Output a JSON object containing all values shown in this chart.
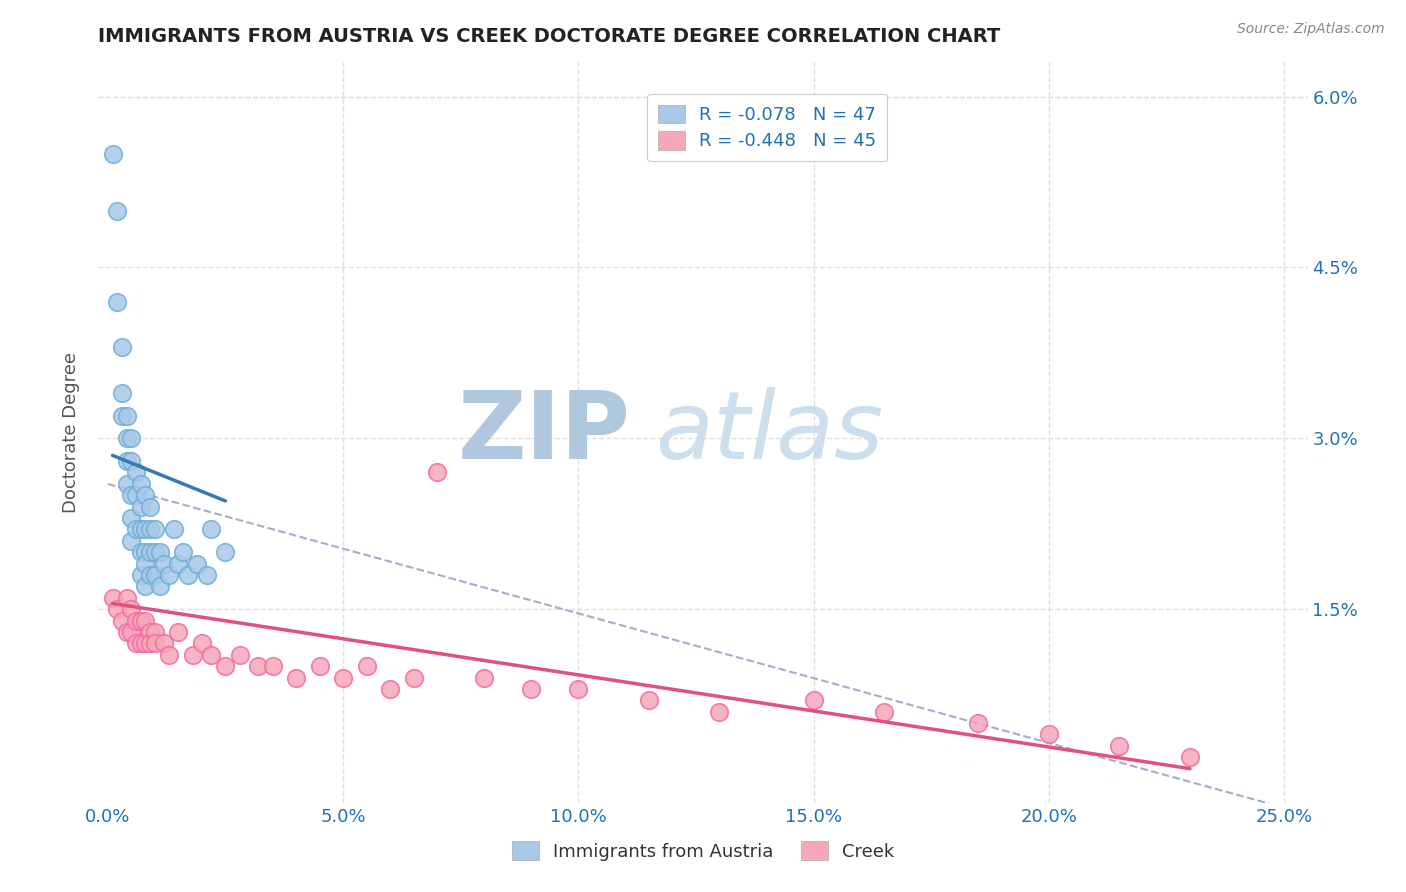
{
  "title": "IMMIGRANTS FROM AUSTRIA VS CREEK DOCTORATE DEGREE CORRELATION CHART",
  "source_text": "Source: ZipAtlas.com",
  "ylabel": "Doctorate Degree",
  "xlim": [
    -0.002,
    0.255
  ],
  "ylim": [
    -0.002,
    0.063
  ],
  "xticks": [
    0.0,
    0.05,
    0.1,
    0.15,
    0.2,
    0.25
  ],
  "xticklabels": [
    "0.0%",
    "5.0%",
    "10.0%",
    "15.0%",
    "20.0%",
    "25.0%"
  ],
  "yticks": [
    0.0,
    0.015,
    0.03,
    0.045,
    0.06
  ],
  "yticklabels_left": [
    "",
    "",
    "",
    "",
    ""
  ],
  "yticklabels_right": [
    "",
    "1.5%",
    "3.0%",
    "4.5%",
    "6.0%"
  ],
  "legend_label1": "Immigrants from Austria",
  "legend_label2": "Creek",
  "r1": -0.078,
  "n1": 47,
  "r2": -0.448,
  "n2": 45,
  "blue_color": "#a8c8e8",
  "pink_color": "#f4a8b8",
  "blue_edge_color": "#6baed6",
  "pink_edge_color": "#f768a1",
  "blue_line_color": "#3878b4",
  "pink_line_color": "#e05080",
  "dashed_line_color": "#aaaacc",
  "grid_color": "#e0e0e0",
  "title_color": "#222222",
  "axis_label_color": "#555555",
  "tick_color": "#2171b5",
  "watermark_zip_color": "#c8d8e8",
  "watermark_atlas_color": "#b8cce0",
  "background_color": "#ffffff",
  "austria_x": [
    0.001,
    0.002,
    0.002,
    0.003,
    0.003,
    0.003,
    0.004,
    0.004,
    0.004,
    0.004,
    0.005,
    0.005,
    0.005,
    0.005,
    0.005,
    0.006,
    0.006,
    0.006,
    0.007,
    0.007,
    0.007,
    0.007,
    0.007,
    0.008,
    0.008,
    0.008,
    0.008,
    0.008,
    0.009,
    0.009,
    0.009,
    0.009,
    0.01,
    0.01,
    0.01,
    0.011,
    0.011,
    0.012,
    0.013,
    0.014,
    0.015,
    0.016,
    0.017,
    0.019,
    0.021,
    0.022,
    0.025
  ],
  "austria_y": [
    0.055,
    0.05,
    0.042,
    0.038,
    0.034,
    0.032,
    0.032,
    0.03,
    0.028,
    0.026,
    0.03,
    0.028,
    0.025,
    0.023,
    0.021,
    0.027,
    0.025,
    0.022,
    0.026,
    0.024,
    0.022,
    0.02,
    0.018,
    0.025,
    0.022,
    0.02,
    0.019,
    0.017,
    0.024,
    0.022,
    0.02,
    0.018,
    0.022,
    0.02,
    0.018,
    0.02,
    0.017,
    0.019,
    0.018,
    0.022,
    0.019,
    0.02,
    0.018,
    0.019,
    0.018,
    0.022,
    0.02
  ],
  "creek_x": [
    0.001,
    0.002,
    0.003,
    0.004,
    0.004,
    0.005,
    0.005,
    0.006,
    0.006,
    0.007,
    0.007,
    0.008,
    0.008,
    0.009,
    0.009,
    0.01,
    0.01,
    0.012,
    0.013,
    0.015,
    0.018,
    0.02,
    0.022,
    0.025,
    0.028,
    0.032,
    0.035,
    0.04,
    0.045,
    0.05,
    0.055,
    0.06,
    0.065,
    0.07,
    0.08,
    0.09,
    0.1,
    0.115,
    0.13,
    0.15,
    0.165,
    0.185,
    0.2,
    0.215,
    0.23
  ],
  "creek_y": [
    0.016,
    0.015,
    0.014,
    0.016,
    0.013,
    0.015,
    0.013,
    0.014,
    0.012,
    0.014,
    0.012,
    0.014,
    0.012,
    0.013,
    0.012,
    0.013,
    0.012,
    0.012,
    0.011,
    0.013,
    0.011,
    0.012,
    0.011,
    0.01,
    0.011,
    0.01,
    0.01,
    0.009,
    0.01,
    0.009,
    0.01,
    0.008,
    0.009,
    0.027,
    0.009,
    0.008,
    0.008,
    0.007,
    0.006,
    0.007,
    0.006,
    0.005,
    0.004,
    0.003,
    0.002
  ],
  "austria_trend_x": [
    0.001,
    0.025
  ],
  "austria_trend_y": [
    0.0285,
    0.0245
  ],
  "creek_trend_x": [
    0.001,
    0.23
  ],
  "creek_trend_y": [
    0.0155,
    0.001
  ],
  "dashed_trend_x": [
    0.0,
    0.255
  ],
  "dashed_trend_y": [
    0.026,
    -0.003
  ]
}
